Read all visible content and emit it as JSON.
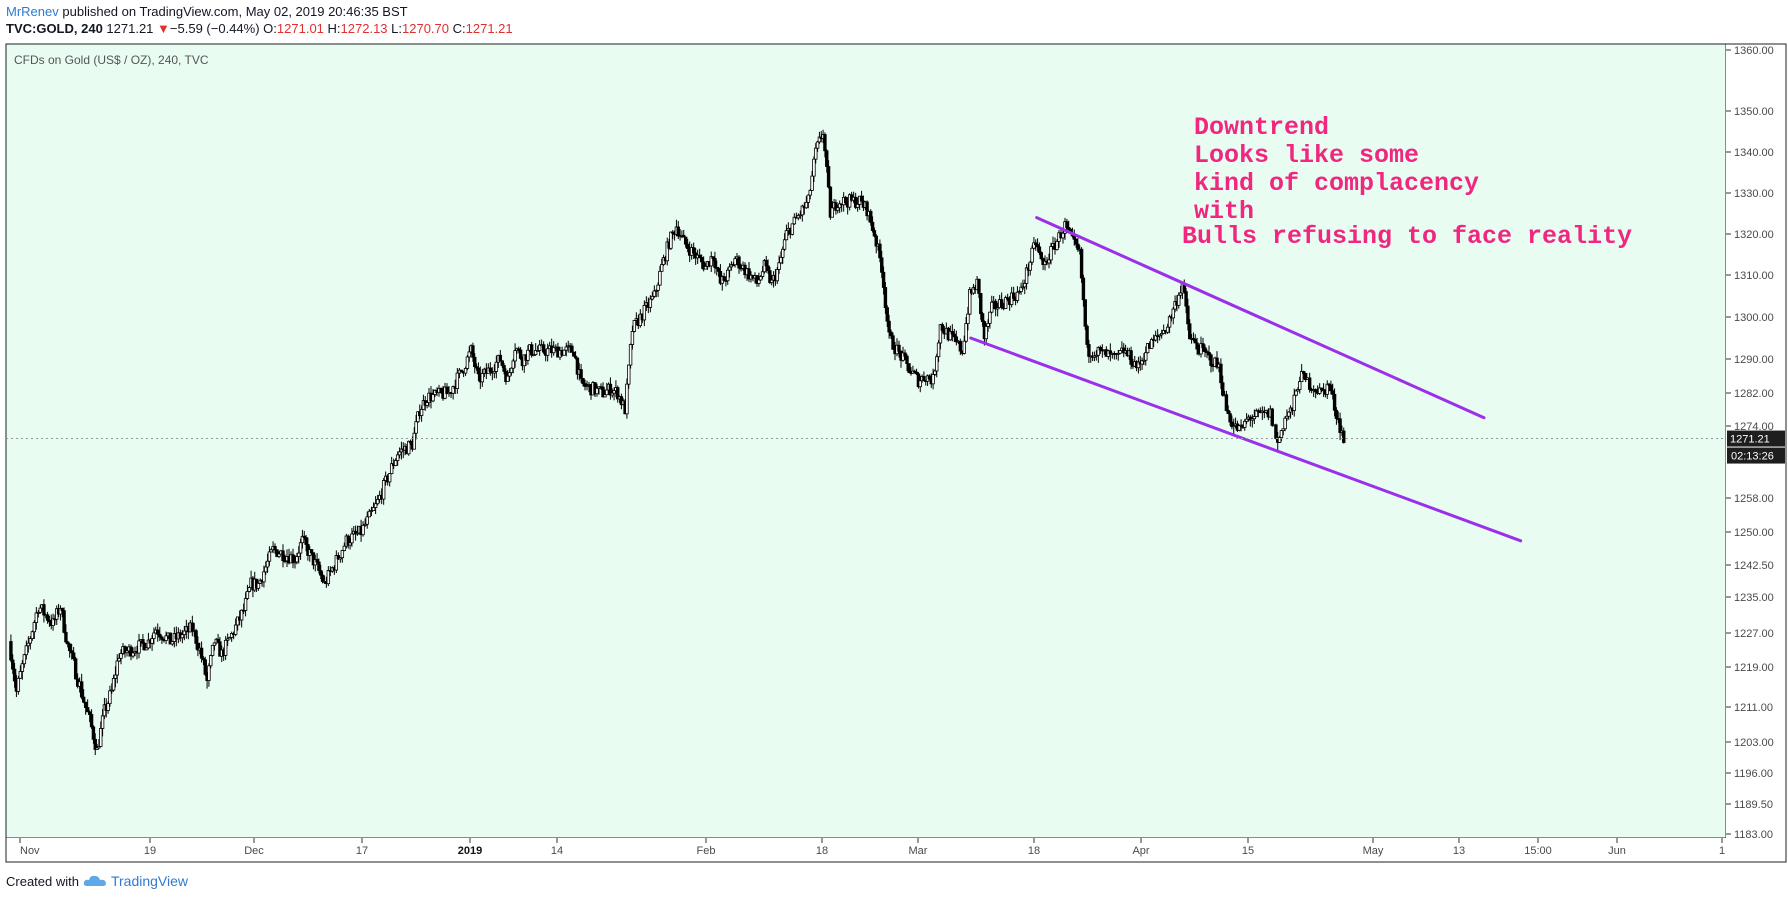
{
  "header": {
    "author": "MrRenev",
    "published": "published on TradingView.com, May 02, 2019 20:46:35 BST",
    "symbol": "TVC:GOLD, 240",
    "last": "1271.21",
    "down_arrow": "▼",
    "change": "−5.59 (−0.44%)",
    "o_label": "O:",
    "o_value": "1271.01",
    "h_label": "H:",
    "h_value": "1272.13",
    "l_label": "L:",
    "l_value": "1270.70",
    "c_label": "C:",
    "c_value": "1271.21"
  },
  "footer": {
    "created_with": "Created with",
    "brand": "TradingView",
    "logo_icon": "tradingview-cloud-icon"
  },
  "colors": {
    "background": "#e8fcf2",
    "candle": "#000000",
    "trendline": "#9b30ea",
    "annotation": "#f0267f",
    "price_badge": "#1e1e1e"
  },
  "chart_data": {
    "type": "candlestick",
    "title": "CFDs on Gold (US$ / OZ), 240, TVC",
    "y_ticks": [
      "1360.00",
      "1350.00",
      "1340.00",
      "1330.00",
      "1320.00",
      "1310.00",
      "1300.00",
      "1290.00",
      "1282.00",
      "1274.00",
      "1258.00",
      "1250.00",
      "1242.50",
      "1235.00",
      "1227.00",
      "1219.00",
      "1211.00",
      "1203.00",
      "1196.00",
      "1189.50",
      "1183.00"
    ],
    "x_ticks": [
      "Nov",
      "19",
      "Dec",
      "17",
      "2019",
      "14",
      "Feb",
      "18",
      "Mar",
      "18",
      "Apr",
      "15",
      "May",
      "13",
      "15:00",
      "Jun",
      "1"
    ],
    "bold_x_ticks": [
      "2019"
    ],
    "last_price": "1271.21",
    "countdown": "02:13:26",
    "price_path": [
      [
        "2018-11-01",
        1225
      ],
      [
        "2018-11-02",
        1214
      ],
      [
        "2018-11-05",
        1233
      ],
      [
        "2018-11-07",
        1229
      ],
      [
        "2018-11-08",
        1233
      ],
      [
        "2018-11-09",
        1224
      ],
      [
        "2018-11-12",
        1208
      ],
      [
        "2018-11-13",
        1201
      ],
      [
        "2018-11-14",
        1210
      ],
      [
        "2018-11-15",
        1214
      ],
      [
        "2018-11-16",
        1222
      ],
      [
        "2018-11-19",
        1224
      ],
      [
        "2018-11-20",
        1225
      ],
      [
        "2018-11-21",
        1228
      ],
      [
        "2018-11-23",
        1225
      ],
      [
        "2018-11-26",
        1228
      ],
      [
        "2018-11-27",
        1223
      ],
      [
        "2018-11-28",
        1216
      ],
      [
        "2018-11-29",
        1225
      ],
      [
        "2018-11-30",
        1222
      ],
      [
        "2018-12-03",
        1232
      ],
      [
        "2018-12-04",
        1238
      ],
      [
        "2018-12-05",
        1238
      ],
      [
        "2018-12-07",
        1246
      ],
      [
        "2018-12-10",
        1244
      ],
      [
        "2018-12-11",
        1248
      ],
      [
        "2018-12-13",
        1242
      ],
      [
        "2018-12-14",
        1238
      ],
      [
        "2018-12-17",
        1248
      ],
      [
        "2018-12-19",
        1250
      ],
      [
        "2018-12-21",
        1256
      ],
      [
        "2018-12-24",
        1268
      ],
      [
        "2018-12-26",
        1270
      ],
      [
        "2018-12-27",
        1278
      ],
      [
        "2018-12-28",
        1281
      ],
      [
        "2018-12-31",
        1282
      ],
      [
        "2019-01-02",
        1288
      ],
      [
        "2019-01-03",
        1292
      ],
      [
        "2019-01-04",
        1285
      ],
      [
        "2019-01-07",
        1290
      ],
      [
        "2019-01-08",
        1285
      ],
      [
        "2019-01-09",
        1293
      ],
      [
        "2019-01-10",
        1290
      ],
      [
        "2019-01-11",
        1292
      ],
      [
        "2019-01-14",
        1292
      ],
      [
        "2019-01-16",
        1292
      ],
      [
        "2019-01-17",
        1292
      ],
      [
        "2019-01-18",
        1284
      ],
      [
        "2019-01-21",
        1282
      ],
      [
        "2019-01-22",
        1283
      ],
      [
        "2019-01-23",
        1282
      ],
      [
        "2019-01-24",
        1278
      ],
      [
        "2019-01-25",
        1297
      ],
      [
        "2019-01-28",
        1305
      ],
      [
        "2019-01-29",
        1312
      ],
      [
        "2019-01-30",
        1318
      ],
      [
        "2019-01-31",
        1322
      ],
      [
        "2019-02-01",
        1318
      ],
      [
        "2019-02-04",
        1312
      ],
      [
        "2019-02-05",
        1315
      ],
      [
        "2019-02-06",
        1308
      ],
      [
        "2019-02-07",
        1310
      ],
      [
        "2019-02-08",
        1314
      ],
      [
        "2019-02-11",
        1308
      ],
      [
        "2019-02-12",
        1312
      ],
      [
        "2019-02-13",
        1308
      ],
      [
        "2019-02-14",
        1312
      ],
      [
        "2019-02-15",
        1320
      ],
      [
        "2019-02-18",
        1328
      ],
      [
        "2019-02-19",
        1340
      ],
      [
        "2019-02-20",
        1345
      ],
      [
        "2019-02-21",
        1325
      ],
      [
        "2019-02-22",
        1328
      ],
      [
        "2019-02-25",
        1328
      ],
      [
        "2019-02-26",
        1326
      ],
      [
        "2019-02-27",
        1320
      ],
      [
        "2019-02-28",
        1312
      ],
      [
        "2019-03-01",
        1295
      ],
      [
        "2019-03-04",
        1287
      ],
      [
        "2019-03-05",
        1285
      ],
      [
        "2019-03-06",
        1286
      ],
      [
        "2019-03-07",
        1285
      ],
      [
        "2019-03-08",
        1298
      ],
      [
        "2019-03-11",
        1292
      ],
      [
        "2019-03-12",
        1305
      ],
      [
        "2019-03-13",
        1308
      ],
      [
        "2019-03-14",
        1295
      ],
      [
        "2019-03-15",
        1302
      ],
      [
        "2019-03-18",
        1305
      ],
      [
        "2019-03-19",
        1306
      ],
      [
        "2019-03-20",
        1312
      ],
      [
        "2019-03-21",
        1318
      ],
      [
        "2019-03-22",
        1312
      ],
      [
        "2019-03-25",
        1322
      ],
      [
        "2019-03-26",
        1318
      ],
      [
        "2019-03-27",
        1315
      ],
      [
        "2019-03-28",
        1292
      ],
      [
        "2019-03-29",
        1292
      ],
      [
        "2019-04-01",
        1290
      ],
      [
        "2019-04-02",
        1292
      ],
      [
        "2019-04-03",
        1290
      ],
      [
        "2019-04-04",
        1288
      ],
      [
        "2019-04-05",
        1292
      ],
      [
        "2019-04-08",
        1298
      ],
      [
        "2019-04-09",
        1303
      ],
      [
        "2019-04-10",
        1308
      ],
      [
        "2019-04-11",
        1295
      ],
      [
        "2019-04-12",
        1293
      ],
      [
        "2019-04-15",
        1288
      ],
      [
        "2019-04-16",
        1278
      ],
      [
        "2019-04-17",
        1274
      ],
      [
        "2019-04-18",
        1273
      ],
      [
        "2019-04-19",
        1276
      ],
      [
        "2019-04-22",
        1277
      ],
      [
        "2019-04-23",
        1270
      ],
      [
        "2019-04-24",
        1276
      ],
      [
        "2019-04-25",
        1278
      ],
      [
        "2019-04-26",
        1286
      ],
      [
        "2019-04-29",
        1282
      ],
      [
        "2019-04-30",
        1284
      ],
      [
        "2019-05-01",
        1277
      ],
      [
        "2019-05-02",
        1271
      ]
    ],
    "trendlines": [
      {
        "from": [
          "2019-03-21",
          1324
        ],
        "to": [
          "2019-05-21",
          1276
        ]
      },
      {
        "from": [
          "2019-03-12",
          1295
        ],
        "to": [
          "2019-05-26",
          1248
        ]
      }
    ]
  },
  "annotation": {
    "lines": [
      "Downtrend",
      "Looks like some",
      "kind of complacency",
      "with",
      "Bulls refusing to face reality"
    ]
  }
}
